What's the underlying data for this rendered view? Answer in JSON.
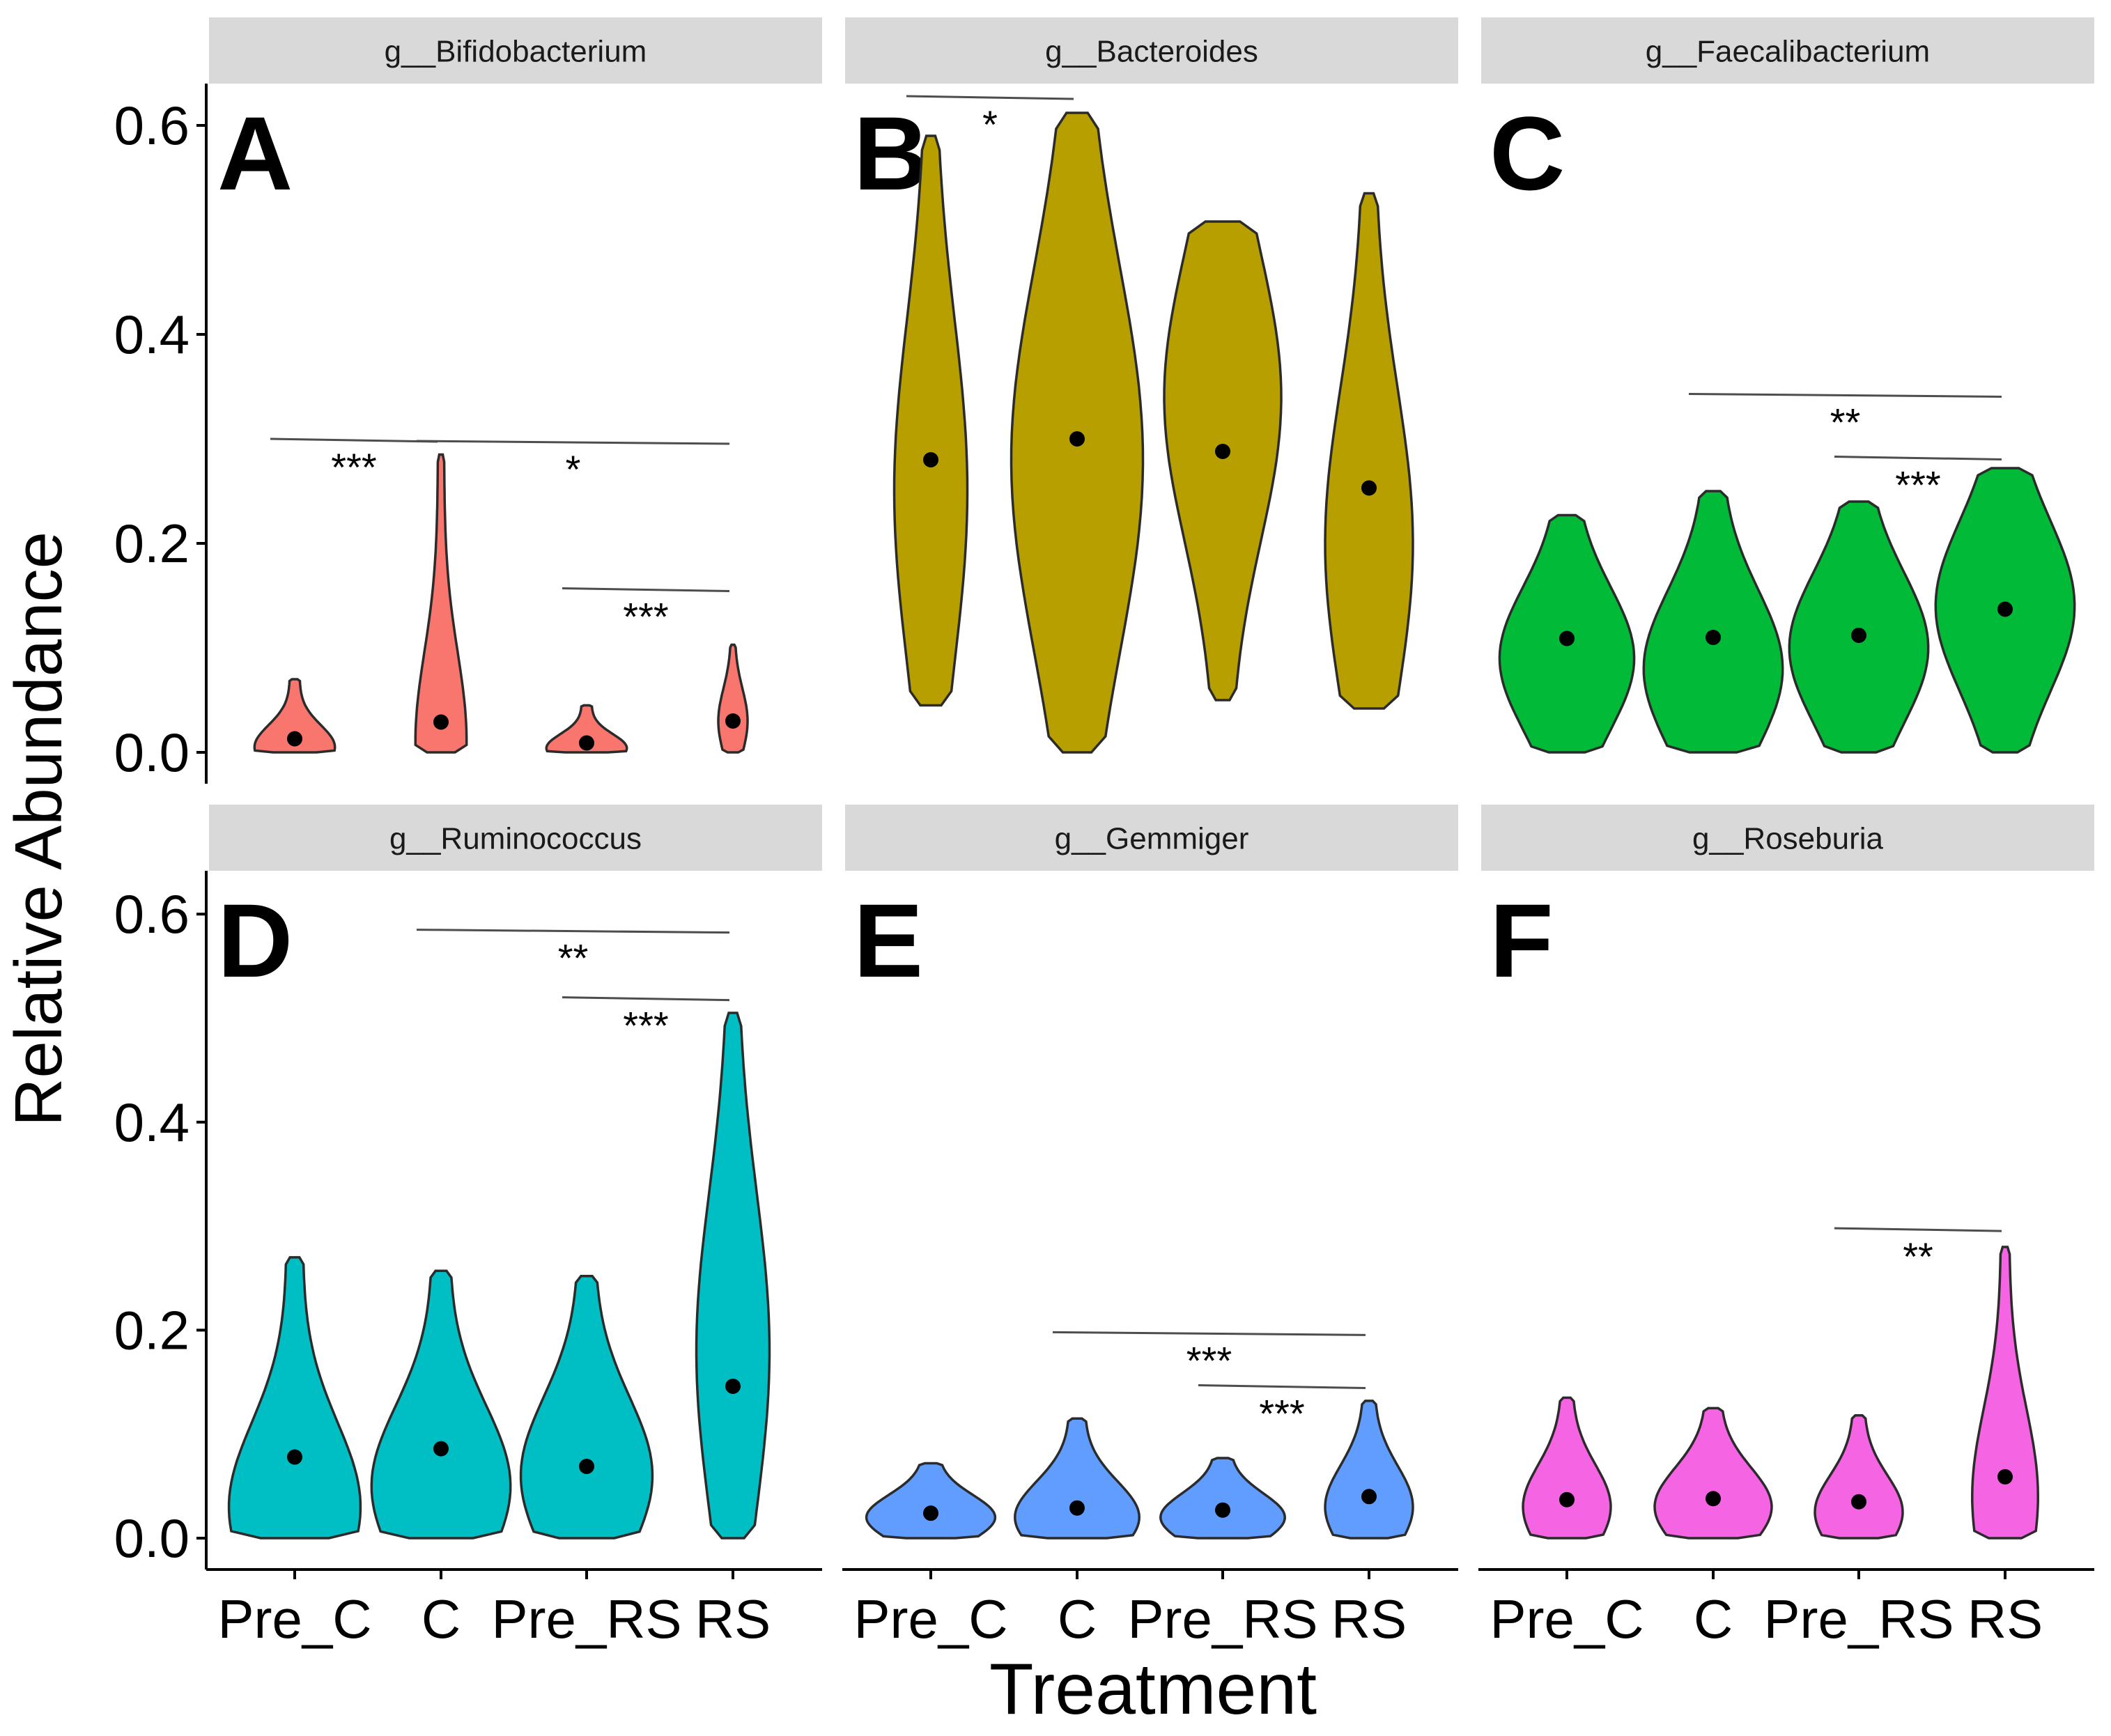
{
  "chart_data": {
    "type": "violin",
    "ylabel": "Relative Abundance",
    "xlabel": "Treatment",
    "x_tick_labels": [
      "Pre_C",
      "C",
      "Pre_RS",
      "RS"
    ],
    "y_tick_labels": [
      "0.0",
      "0.2",
      "0.4",
      "0.6"
    ],
    "ylim": [
      0,
      0.65
    ],
    "grid": false,
    "panels": [
      {
        "letter": "A",
        "taxon": "g__Bifidobacterium",
        "color": "#F8766D",
        "violins": [
          {
            "group": "Pre_C",
            "min": 0.0,
            "max": 0.07,
            "median": 0.013,
            "peak_at": 0.005,
            "width": 0.55
          },
          {
            "group": "C",
            "min": 0.0,
            "max": 0.285,
            "median": 0.029,
            "peak_at": 0.01,
            "width": 0.35
          },
          {
            "group": "Pre_RS",
            "min": 0.0,
            "max": 0.045,
            "median": 0.009,
            "peak_at": 0.004,
            "width": 0.55
          },
          {
            "group": "RS",
            "min": 0.0,
            "max": 0.103,
            "median": 0.03,
            "peak_at": 0.03,
            "width": 0.2
          }
        ],
        "comparisons": [
          {
            "from": "Pre_C",
            "to": "C",
            "y": 0.3,
            "label": "***"
          },
          {
            "from": "C",
            "to": "RS",
            "y": 0.298,
            "label": "*"
          },
          {
            "from": "Pre_RS",
            "to": "RS",
            "y": 0.157,
            "label": "***"
          }
        ]
      },
      {
        "letter": "B",
        "taxon": "g__Bacteroides",
        "color": "#B79F00",
        "violins": [
          {
            "group": "Pre_C",
            "min": 0.045,
            "max": 0.59,
            "median": 0.28,
            "peak_at": 0.25,
            "width": 0.5
          },
          {
            "group": "C",
            "min": 0.0,
            "max": 0.612,
            "median": 0.3,
            "peak_at": 0.28,
            "width": 0.9
          },
          {
            "group": "Pre_RS",
            "min": 0.05,
            "max": 0.508,
            "median": 0.288,
            "peak_at": 0.34,
            "width": 0.8
          },
          {
            "group": "RS",
            "min": 0.042,
            "max": 0.535,
            "median": 0.253,
            "peak_at": 0.2,
            "width": 0.6
          }
        ],
        "comparisons": [
          {
            "from": "Pre_C",
            "to": "C",
            "y": 0.628,
            "label": "*"
          }
        ]
      },
      {
        "letter": "C",
        "taxon": "g__Faecalibacterium",
        "color": "#00BA38",
        "violins": [
          {
            "group": "Pre_C",
            "min": 0.0,
            "max": 0.227,
            "median": 0.109,
            "peak_at": 0.09,
            "width": 0.92
          },
          {
            "group": "C",
            "min": 0.0,
            "max": 0.25,
            "median": 0.11,
            "peak_at": 0.08,
            "width": 0.95
          },
          {
            "group": "Pre_RS",
            "min": 0.0,
            "max": 0.24,
            "median": 0.112,
            "peak_at": 0.1,
            "width": 0.95
          },
          {
            "group": "RS",
            "min": 0.0,
            "max": 0.272,
            "median": 0.137,
            "peak_at": 0.14,
            "width": 0.95
          }
        ],
        "comparisons": [
          {
            "from": "C",
            "to": "RS",
            "y": 0.343,
            "label": "**"
          },
          {
            "from": "Pre_RS",
            "to": "RS",
            "y": 0.283,
            "label": "***"
          }
        ]
      },
      {
        "letter": "D",
        "taxon": "g__Ruminococcus",
        "color": "#00BFC4",
        "violins": [
          {
            "group": "Pre_C",
            "min": 0.0,
            "max": 0.27,
            "median": 0.078,
            "peak_at": 0.03,
            "width": 0.9
          },
          {
            "group": "C",
            "min": 0.0,
            "max": 0.257,
            "median": 0.086,
            "peak_at": 0.05,
            "width": 0.95
          },
          {
            "group": "Pre_RS",
            "min": 0.0,
            "max": 0.252,
            "median": 0.069,
            "peak_at": 0.06,
            "width": 0.9
          },
          {
            "group": "RS",
            "min": 0.0,
            "max": 0.505,
            "median": 0.146,
            "peak_at": 0.18,
            "width": 0.5
          }
        ],
        "comparisons": [
          {
            "from": "C",
            "to": "RS",
            "y": 0.585,
            "label": "**"
          },
          {
            "from": "Pre_RS",
            "to": "RS",
            "y": 0.52,
            "label": "***"
          }
        ]
      },
      {
        "letter": "E",
        "taxon": "g__Gemmiger",
        "color": "#619CFF",
        "violins": [
          {
            "group": "Pre_C",
            "min": 0.0,
            "max": 0.072,
            "median": 0.024,
            "peak_at": 0.02,
            "width": 0.88
          },
          {
            "group": "C",
            "min": 0.0,
            "max": 0.115,
            "median": 0.029,
            "peak_at": 0.02,
            "width": 0.85
          },
          {
            "group": "Pre_RS",
            "min": 0.0,
            "max": 0.077,
            "median": 0.027,
            "peak_at": 0.02,
            "width": 0.85
          },
          {
            "group": "RS",
            "min": 0.0,
            "max": 0.132,
            "median": 0.04,
            "peak_at": 0.03,
            "width": 0.6
          }
        ],
        "comparisons": [
          {
            "from": "C",
            "to": "RS",
            "y": 0.198,
            "label": "***"
          },
          {
            "from": "Pre_RS",
            "to": "RS",
            "y": 0.147,
            "label": "***"
          }
        ]
      },
      {
        "letter": "F",
        "taxon": "g__Roseburia",
        "color": "#F564E3",
        "violins": [
          {
            "group": "Pre_C",
            "min": 0.0,
            "max": 0.135,
            "median": 0.037,
            "peak_at": 0.03,
            "width": 0.6
          },
          {
            "group": "C",
            "min": 0.0,
            "max": 0.125,
            "median": 0.038,
            "peak_at": 0.03,
            "width": 0.8
          },
          {
            "group": "Pre_RS",
            "min": 0.0,
            "max": 0.118,
            "median": 0.035,
            "peak_at": 0.025,
            "width": 0.6
          },
          {
            "group": "RS",
            "min": 0.0,
            "max": 0.28,
            "median": 0.059,
            "peak_at": 0.04,
            "width": 0.45
          }
        ],
        "comparisons": [
          {
            "from": "Pre_RS",
            "to": "RS",
            "y": 0.298,
            "label": "**"
          }
        ]
      }
    ]
  }
}
